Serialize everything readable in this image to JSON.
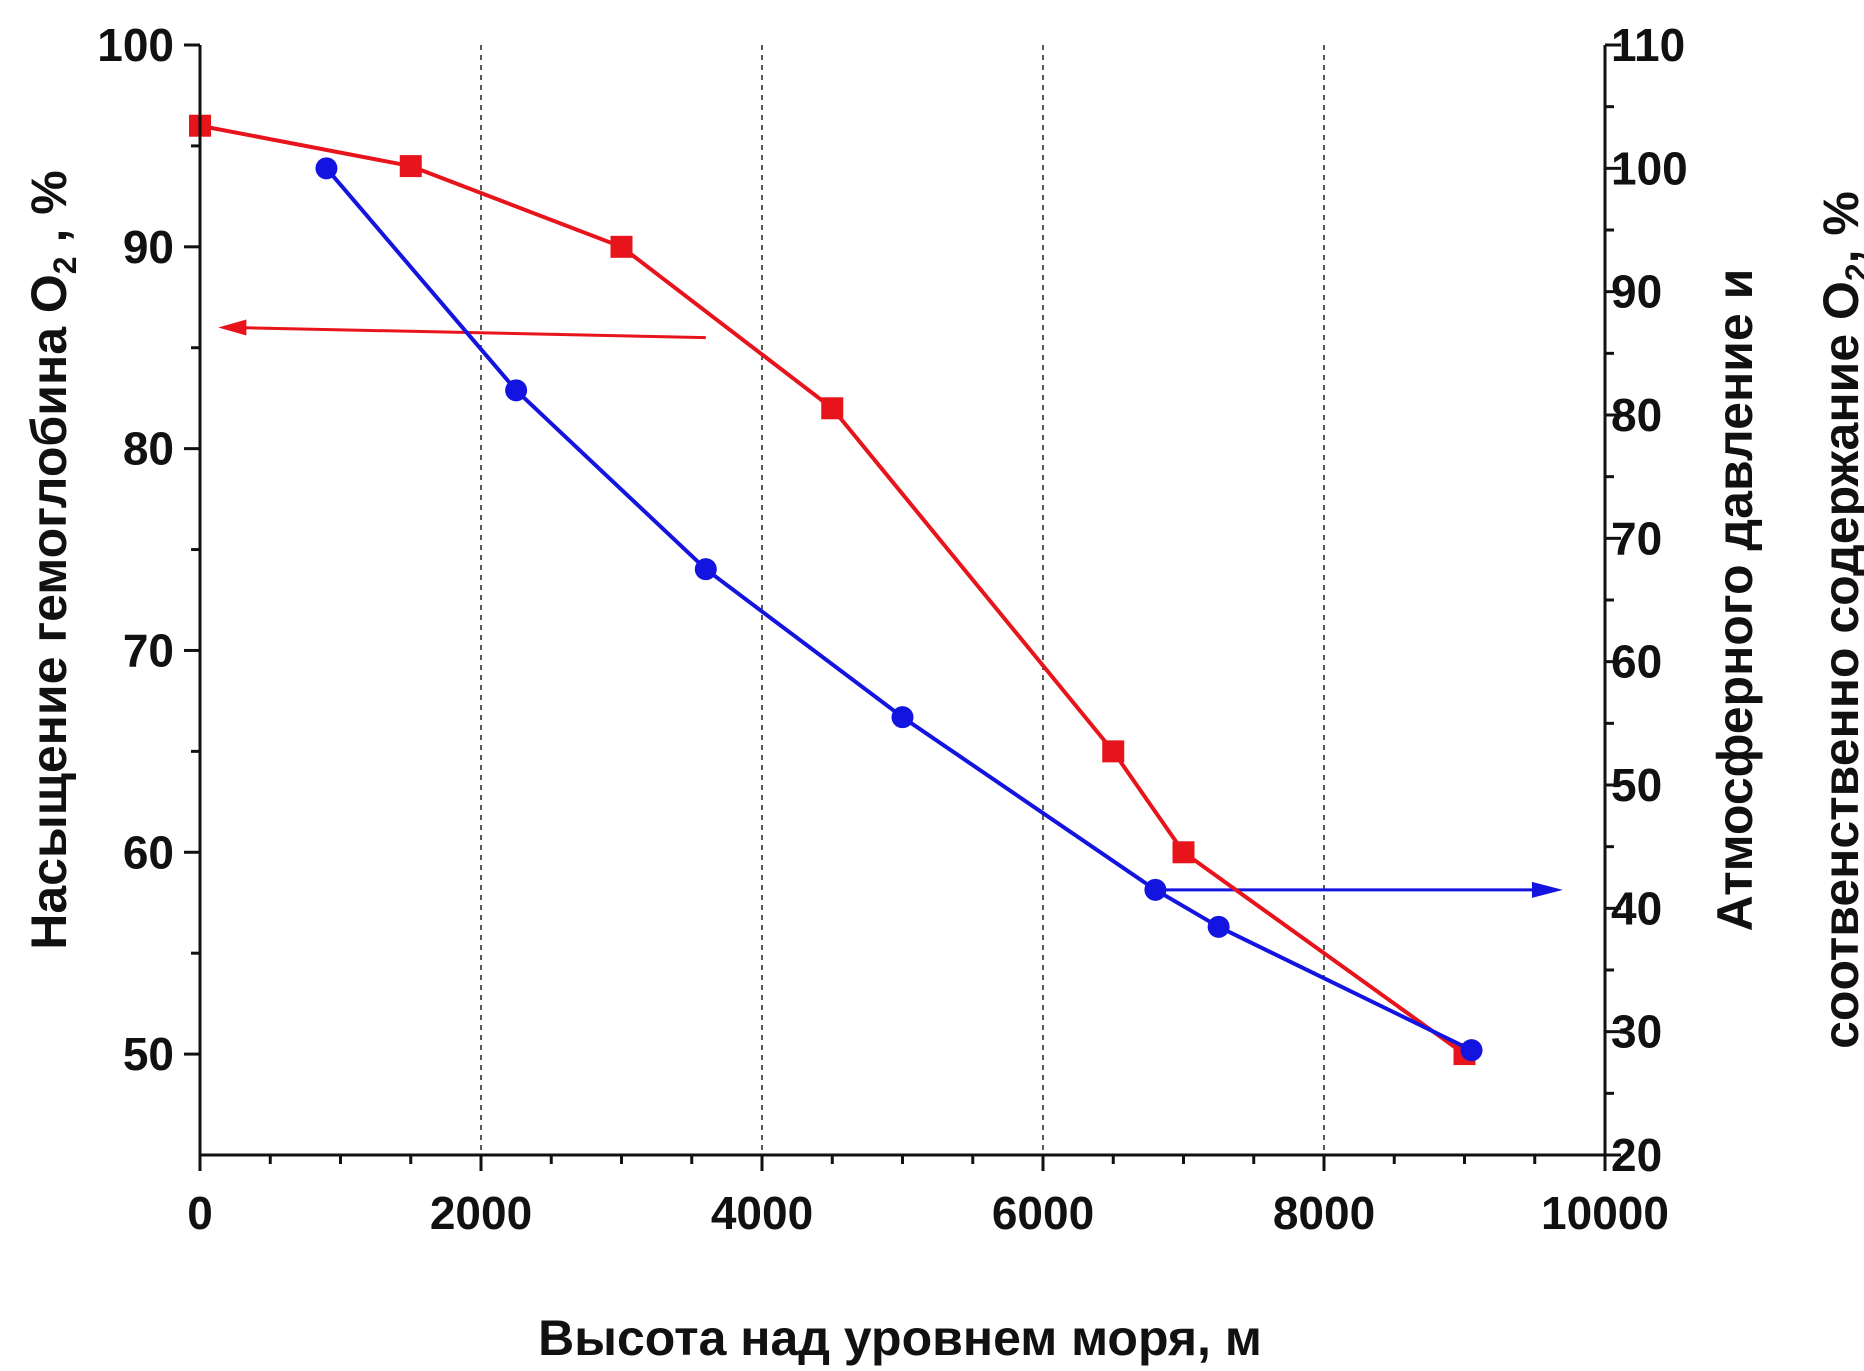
{
  "chart_data": {
    "type": "line",
    "title": "",
    "xlabel": "Высота над уровнем моря, м",
    "ylabel_left": {
      "main": "Насыщение гемоглобина O",
      "sub": "2",
      "tail": " , %"
    },
    "ylabel_right": {
      "line1": "Атмосферного давление и",
      "line2_main": "соотвенственно содержание O",
      "line2_sub": "2",
      "line2_tail": ", %"
    },
    "xlim": [
      0,
      10000
    ],
    "ylim_left": [
      45,
      100
    ],
    "ylim_right": [
      20,
      110
    ],
    "x_ticks": [
      0,
      2000,
      4000,
      6000,
      8000,
      10000
    ],
    "y_left_ticks": [
      50,
      60,
      70,
      80,
      90,
      100
    ],
    "y_right_ticks": [
      20,
      30,
      40,
      50,
      60,
      70,
      80,
      90,
      100,
      110
    ],
    "grid": "vertical dashed at 2000, 4000, 6000, 8000",
    "legend": "none",
    "series": [
      {
        "axis": "left",
        "color": "#e8141c",
        "marker": "square",
        "points": [
          [
            0,
            96
          ],
          [
            1500,
            94
          ],
          [
            3000,
            90
          ],
          [
            4500,
            82
          ],
          [
            6500,
            65
          ],
          [
            7000,
            60
          ],
          [
            9000,
            50
          ]
        ]
      },
      {
        "axis": "right",
        "color": "#1414e0",
        "marker": "circle",
        "points": [
          [
            900,
            100
          ],
          [
            2250,
            82
          ],
          [
            3600,
            67.5
          ],
          [
            5000,
            55.5
          ],
          [
            6800,
            41.5
          ],
          [
            7250,
            38.5
          ],
          [
            9050,
            28.5
          ]
        ]
      }
    ],
    "annotations": [
      {
        "type": "arrow",
        "direction": "left",
        "color": "#e8141c",
        "meaning": "red series uses left axis"
      },
      {
        "type": "arrow",
        "direction": "right",
        "color": "#1414e0",
        "meaning": "blue series uses right axis"
      }
    ]
  }
}
